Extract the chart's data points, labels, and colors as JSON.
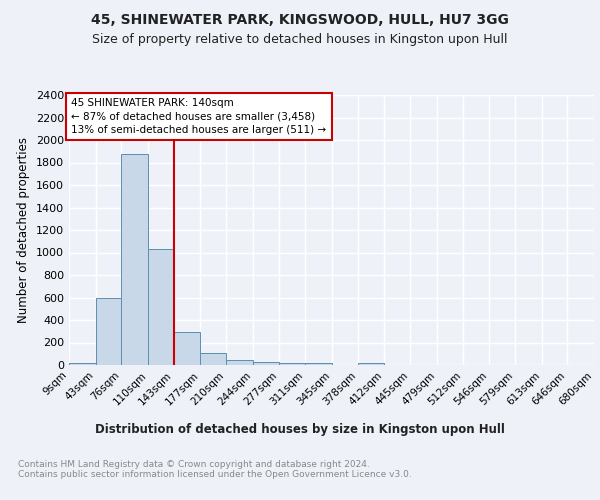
{
  "title1": "45, SHINEWATER PARK, KINGSWOOD, HULL, HU7 3GG",
  "title2": "Size of property relative to detached houses in Kingston upon Hull",
  "xlabel": "Distribution of detached houses by size in Kingston upon Hull",
  "ylabel": "Number of detached properties",
  "footnote": "Contains HM Land Registry data © Crown copyright and database right 2024.\nContains public sector information licensed under the Open Government Licence v3.0.",
  "bin_edges": [
    9,
    43,
    76,
    110,
    143,
    177,
    210,
    244,
    277,
    311,
    345,
    378,
    412,
    445,
    479,
    512,
    546,
    579,
    613,
    646,
    680
  ],
  "bin_labels": [
    "9sqm",
    "43sqm",
    "76sqm",
    "110sqm",
    "143sqm",
    "177sqm",
    "210sqm",
    "244sqm",
    "277sqm",
    "311sqm",
    "345sqm",
    "378sqm",
    "412sqm",
    "445sqm",
    "479sqm",
    "512sqm",
    "546sqm",
    "579sqm",
    "613sqm",
    "646sqm",
    "680sqm"
  ],
  "counts": [
    20,
    600,
    1880,
    1030,
    290,
    110,
    48,
    30,
    20,
    20,
    0,
    20,
    0,
    0,
    0,
    0,
    0,
    0,
    0,
    0
  ],
  "bar_color": "#c8d8e8",
  "bar_edge_color": "#5a8fb0",
  "property_line_x": 143,
  "property_line_color": "#cc0000",
  "annotation_text": "45 SHINEWATER PARK: 140sqm\n← 87% of detached houses are smaller (3,458)\n13% of semi-detached houses are larger (511) →",
  "annotation_box_color": "#ffffff",
  "annotation_box_edge_color": "#cc0000",
  "ylim": [
    0,
    2400
  ],
  "yticks": [
    0,
    200,
    400,
    600,
    800,
    1000,
    1200,
    1400,
    1600,
    1800,
    2000,
    2200,
    2400
  ],
  "bg_color": "#eef2f8",
  "plot_bg_color": "#eef2f8",
  "grid_color": "#ffffff"
}
